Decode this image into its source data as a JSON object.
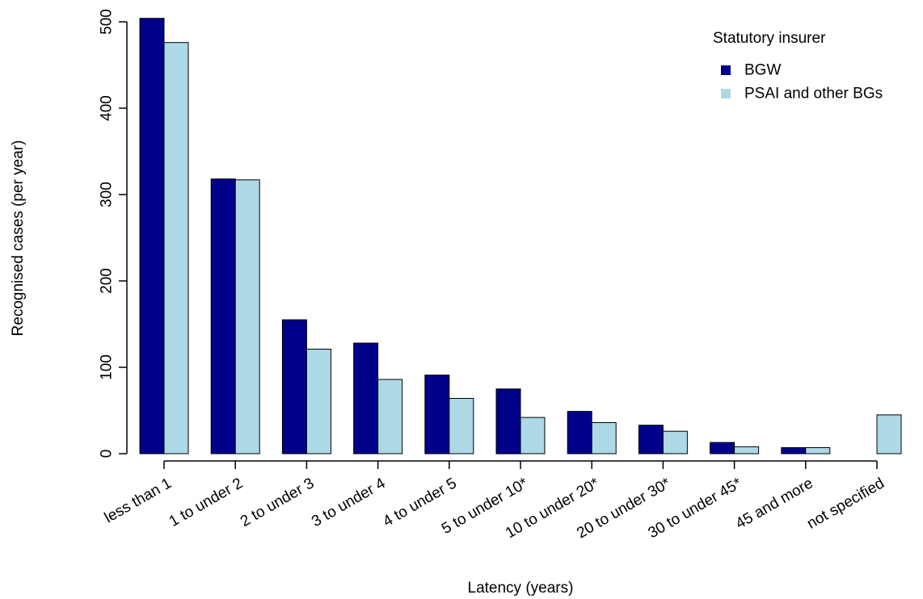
{
  "chart_data": {
    "type": "bar",
    "title": "",
    "xlabel": "Latency  (years)",
    "ylabel": "Recognised cases  (per year)",
    "ylim": [
      0,
      500
    ],
    "yticks": [
      0,
      100,
      200,
      300,
      400,
      500
    ],
    "categories": [
      "less than 1",
      "1 to under 2",
      "2 to under 3",
      "3 to under 4",
      "4 to under 5",
      "5 to under 10*",
      "10 to under 20*",
      "20 to under 30*",
      "30 to under 45*",
      "45 and more",
      "not specified"
    ],
    "series": [
      {
        "name": "BGW",
        "color": "#00008b",
        "values": [
          504,
          318,
          155,
          128,
          91,
          75,
          49,
          33,
          13,
          7,
          0
        ]
      },
      {
        "name": "PSAI and other BGs",
        "color": "#add8e6",
        "values": [
          476,
          317,
          121,
          86,
          64,
          42,
          36,
          26,
          8,
          7,
          45
        ]
      }
    ],
    "legend": {
      "title": "Statutory insurer",
      "position": "top-right"
    },
    "grid": false
  }
}
